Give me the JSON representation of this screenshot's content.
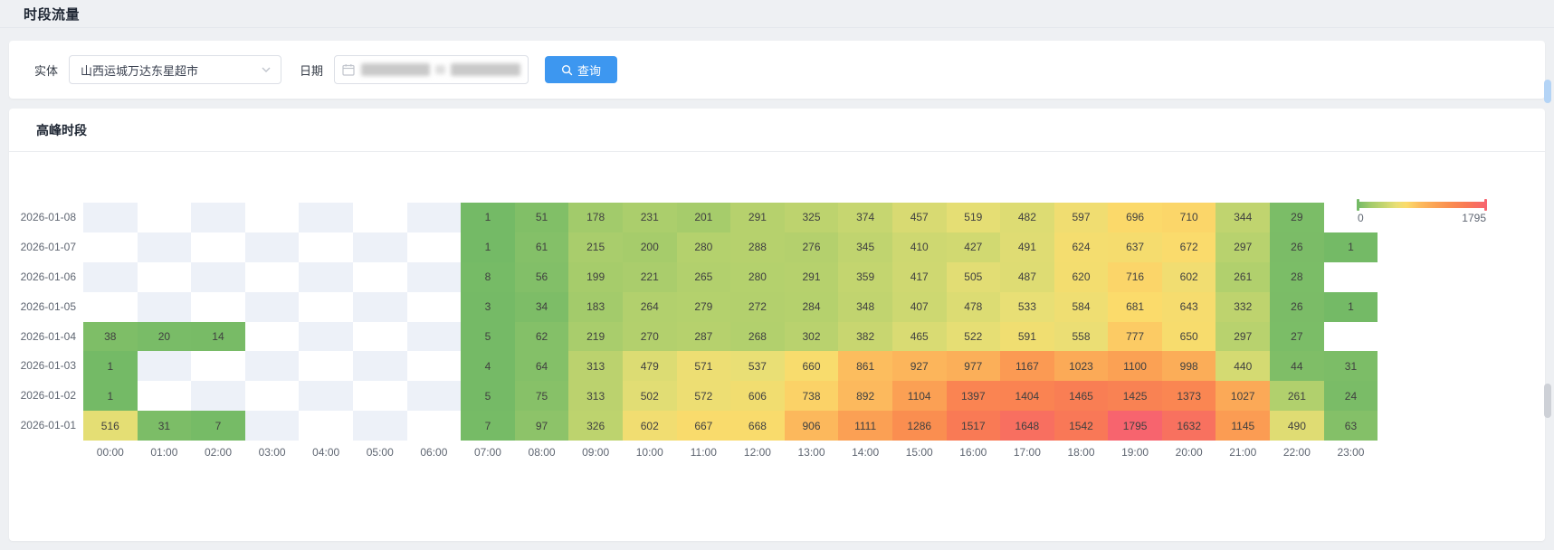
{
  "page": {
    "title": "时段流量"
  },
  "colors": {
    "accent": "#3d97f0",
    "card_bg": "#ffffff",
    "page_bg": "#eef0f3"
  },
  "icons": {
    "entity_select": "chevron-down-icon",
    "date_input": "calendar-icon",
    "query_button": "search-icon"
  },
  "filter_bar": {
    "entity_label": "实体",
    "entity_value": "山西运城万达东星超市",
    "date_label": "日期",
    "date_value_masked": true,
    "query_button_label": "查询"
  },
  "panel": {
    "title": "高峰时段"
  },
  "chart_data": {
    "type": "heatmap",
    "title": "高峰时段",
    "x_labels": [
      "00:00",
      "01:00",
      "02:00",
      "03:00",
      "04:00",
      "05:00",
      "06:00",
      "07:00",
      "08:00",
      "09:00",
      "10:00",
      "11:00",
      "12:00",
      "13:00",
      "14:00",
      "15:00",
      "16:00",
      "17:00",
      "18:00",
      "19:00",
      "20:00",
      "21:00",
      "22:00",
      "23:00"
    ],
    "rows": [
      {
        "date": "2026-01-08",
        "values": [
          null,
          null,
          null,
          null,
          null,
          null,
          null,
          1,
          51,
          178,
          231,
          201,
          291,
          325,
          374,
          457,
          519,
          482,
          597,
          696,
          710,
          344,
          29,
          null
        ]
      },
      {
        "date": "2026-01-07",
        "values": [
          null,
          null,
          null,
          null,
          null,
          null,
          null,
          1,
          61,
          215,
          200,
          280,
          288,
          276,
          345,
          410,
          427,
          491,
          624,
          637,
          672,
          297,
          26,
          1
        ]
      },
      {
        "date": "2026-01-06",
        "values": [
          null,
          null,
          null,
          null,
          null,
          null,
          null,
          8,
          56,
          199,
          221,
          265,
          280,
          291,
          359,
          417,
          505,
          487,
          620,
          716,
          602,
          261,
          28,
          null
        ]
      },
      {
        "date": "2026-01-05",
        "values": [
          null,
          null,
          null,
          null,
          null,
          null,
          null,
          3,
          34,
          183,
          264,
          279,
          272,
          284,
          348,
          407,
          478,
          533,
          584,
          681,
          643,
          332,
          26,
          1
        ]
      },
      {
        "date": "2026-01-04",
        "values": [
          38,
          20,
          14,
          null,
          null,
          null,
          null,
          5,
          62,
          219,
          270,
          287,
          268,
          302,
          382,
          465,
          522,
          591,
          558,
          777,
          650,
          297,
          27,
          null
        ]
      },
      {
        "date": "2026-01-03",
        "values": [
          1,
          null,
          null,
          null,
          null,
          null,
          null,
          4,
          64,
          313,
          479,
          571,
          537,
          660,
          861,
          927,
          977,
          1167,
          1023,
          1100,
          998,
          440,
          44,
          31
        ]
      },
      {
        "date": "2026-01-02",
        "values": [
          1,
          null,
          null,
          null,
          null,
          null,
          null,
          5,
          75,
          313,
          502,
          572,
          606,
          738,
          892,
          1104,
          1397,
          1404,
          1465,
          1425,
          1373,
          1027,
          261,
          24
        ]
      },
      {
        "date": "2026-01-01",
        "values": [
          516,
          31,
          7,
          null,
          null,
          null,
          null,
          7,
          97,
          326,
          602,
          667,
          668,
          906,
          1111,
          1286,
          1517,
          1648,
          1542,
          1795,
          1632,
          1145,
          490,
          63
        ]
      }
    ],
    "visual_map": {
      "min": 0,
      "max": 1795,
      "stops": [
        [
          0.0,
          "#74ba66"
        ],
        [
          0.1,
          "#a2cb6b"
        ],
        [
          0.2,
          "#c3d56f"
        ],
        [
          0.3,
          "#e9df75"
        ],
        [
          0.38,
          "#fbdb6b"
        ],
        [
          0.48,
          "#fcbd5e"
        ],
        [
          0.6,
          "#fba355"
        ],
        [
          0.72,
          "#fa8d50"
        ],
        [
          0.85,
          "#f97955"
        ],
        [
          1.0,
          "#f7646e"
        ]
      ]
    },
    "colorbar": {
      "min_label": "0",
      "max_label": "1795",
      "position": "top-right"
    },
    "empty_cell_colors": [
      "#edf1f8",
      "#ffffff"
    ],
    "grid": "checkerboard"
  }
}
